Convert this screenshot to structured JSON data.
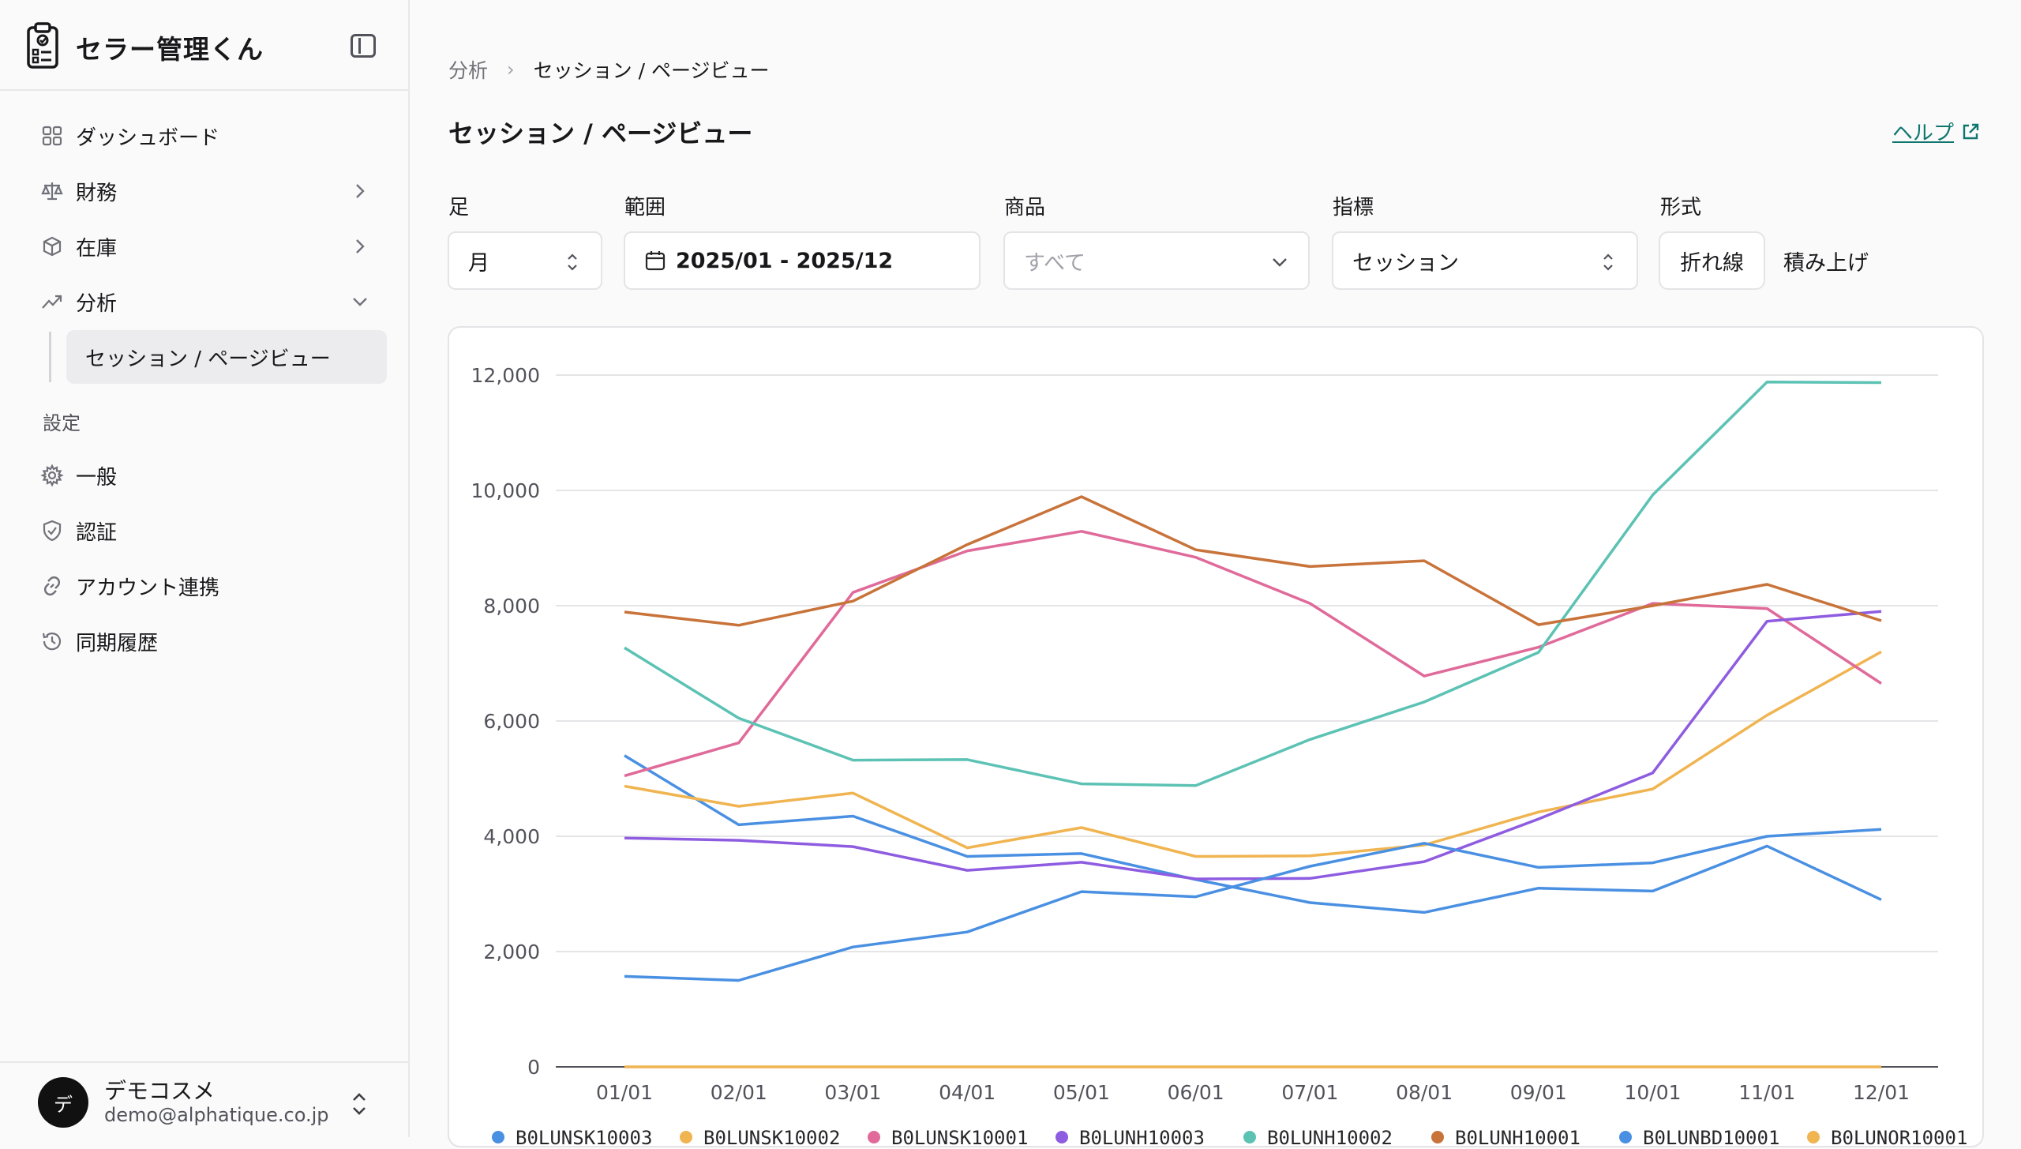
{
  "app": {
    "name": "セラー管理くん"
  },
  "sidebar": {
    "items": [
      {
        "label": "ダッシュボード",
        "icon": "grid-icon"
      },
      {
        "label": "財務",
        "icon": "scale-icon"
      },
      {
        "label": "在庫",
        "icon": "box-icon"
      },
      {
        "label": "分析",
        "icon": "trend-icon"
      }
    ],
    "active_sub": "セッション / ページビュー",
    "section_label": "設定",
    "settings": [
      {
        "label": "一般",
        "icon": "gear-icon"
      },
      {
        "label": "認証",
        "icon": "shield-icon"
      },
      {
        "label": "アカウント連携",
        "icon": "link-icon"
      },
      {
        "label": "同期履歴",
        "icon": "history-icon"
      }
    ]
  },
  "user": {
    "initial": "デ",
    "name": "デモコスメ",
    "email": "demo@alphatique.co.jp"
  },
  "breadcrumb": {
    "parent": "分析",
    "current": "セッション / ページビュー"
  },
  "page": {
    "title": "セッション / ページビュー",
    "help": "ヘルプ"
  },
  "filters": {
    "step": {
      "label": "足",
      "value": "月"
    },
    "range": {
      "label": "範囲",
      "value": "2025/01 - 2025/12"
    },
    "product": {
      "label": "商品",
      "placeholder": "すべて"
    },
    "metric": {
      "label": "指標",
      "value": "セッション"
    },
    "format": {
      "label": "形式",
      "options": [
        "折れ線",
        "積み上げ"
      ],
      "selected": "折れ線"
    }
  },
  "chart_data": {
    "type": "line",
    "x": [
      "01/01",
      "02/01",
      "03/01",
      "04/01",
      "05/01",
      "06/01",
      "07/01",
      "08/01",
      "09/01",
      "10/01",
      "11/01",
      "12/01"
    ],
    "ylim": [
      0,
      12000
    ],
    "yticks": [
      "0",
      "2,000",
      "4,000",
      "6,000",
      "8,000",
      "10,000",
      "12,000"
    ],
    "grid": true,
    "legend_position": "bottom",
    "series": [
      {
        "name": "B0LUNSK10003",
        "color": "#4a90e2",
        "values": [
          5400,
          4200,
          4350,
          3650,
          3700,
          3250,
          2850,
          2680,
          3100,
          3050,
          3830,
          2900
        ]
      },
      {
        "name": "B0LUNSK10002",
        "color": "#f0b450",
        "values": [
          4870,
          4520,
          4750,
          3800,
          4150,
          3650,
          3660,
          3850,
          4420,
          4820,
          6100,
          7200
        ]
      },
      {
        "name": "B0LUNSK10001",
        "color": "#e06a9a",
        "values": [
          5050,
          5620,
          8230,
          8950,
          9290,
          8840,
          8040,
          6780,
          7280,
          8040,
          7950,
          6650
        ]
      },
      {
        "name": "B0LUNH10003",
        "color": "#8e5ce0",
        "values": [
          3970,
          3930,
          3820,
          3410,
          3550,
          3260,
          3270,
          3560,
          4300,
          5100,
          7730,
          7900
        ]
      },
      {
        "name": "B0LUNH10002",
        "color": "#5cc2b4",
        "values": [
          7270,
          6050,
          5320,
          5330,
          4910,
          4880,
          5680,
          6330,
          7190,
          9920,
          11880,
          11870
        ]
      },
      {
        "name": "B0LUNH10001",
        "color": "#c8733a",
        "values": [
          7890,
          7660,
          8080,
          9060,
          9890,
          8970,
          8680,
          8780,
          7670,
          8000,
          8370,
          7740
        ]
      },
      {
        "name": "B0LUNBD10001",
        "color": "#4a90e2",
        "values": [
          1570,
          1500,
          2080,
          2340,
          3040,
          2950,
          3480,
          3880,
          3460,
          3540,
          4000,
          4120
        ]
      },
      {
        "name": "B0LUNOR10001",
        "color": "#f0b450",
        "values": [
          0,
          0,
          0,
          0,
          0,
          0,
          0,
          0,
          0,
          0,
          0,
          0
        ]
      }
    ]
  }
}
